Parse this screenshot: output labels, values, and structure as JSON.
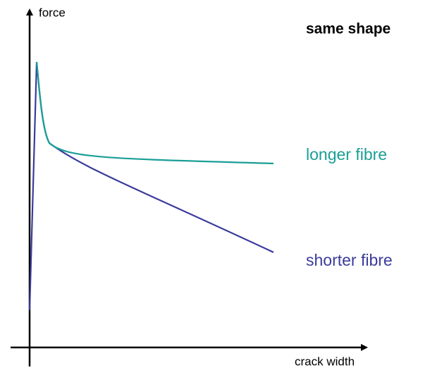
{
  "axes": {
    "y_label": "force",
    "x_label": "crack width"
  },
  "title": "same shape",
  "curves": [
    {
      "label": "longer fibre"
    },
    {
      "label": "shorter fibre"
    }
  ]
}
